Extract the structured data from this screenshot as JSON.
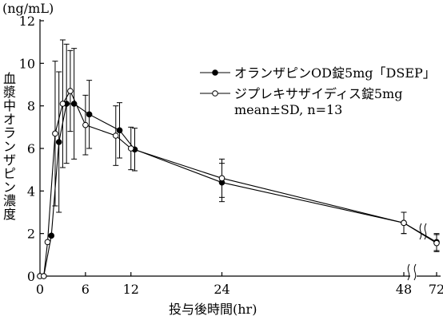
{
  "chart_data": {
    "type": "line",
    "ylabel_unit": "(ng/mL)",
    "ylabel": "血漿中オランザピン濃度",
    "xlabel": "投与後時間(hr)",
    "ylim": [
      0,
      12
    ],
    "y_ticks": [
      0,
      2,
      4,
      6,
      8,
      10,
      12
    ],
    "x_ticks": [
      {
        "value": 0,
        "label": "0"
      },
      {
        "value": 6,
        "label": "6"
      },
      {
        "value": 12,
        "label": "12"
      },
      {
        "value": 24,
        "label": "24"
      },
      {
        "value": 48,
        "label": "48"
      },
      {
        "value": 72,
        "label": "72"
      }
    ],
    "x_axis_break": "between 48 and 72",
    "series": [
      {
        "name": "オランザピンOD錠5mg「DSEP」",
        "marker": "filled-circle",
        "color": "#000000",
        "points": [
          {
            "x": 0,
            "y": 0,
            "sd": 0
          },
          {
            "x": 0.5,
            "y": 0,
            "sd": 0
          },
          {
            "x": 1.5,
            "y": 1.9,
            "sd": 0
          },
          {
            "x": 2.5,
            "y": 6.3,
            "sd": 3.3
          },
          {
            "x": 3.5,
            "y": 8.1,
            "sd": 2.8
          },
          {
            "x": 4.5,
            "y": 8.1,
            "sd": 2.6
          },
          {
            "x": 6.5,
            "y": 7.6,
            "sd": 1.6
          },
          {
            "x": 10.5,
            "y": 6.85,
            "sd": 1.3
          },
          {
            "x": 12.5,
            "y": 5.95,
            "sd": 1.0
          },
          {
            "x": 24,
            "y": 4.4,
            "sd": 0.9
          },
          {
            "x": 48,
            "y": 2.5,
            "sd": 0.5
          },
          {
            "x": 72,
            "y": 1.6,
            "sd": 0.4
          }
        ]
      },
      {
        "name": "ジプレキサザイディス錠5mg",
        "marker": "open-circle",
        "color": "#000000",
        "points": [
          {
            "x": 0,
            "y": 0,
            "sd": 0
          },
          {
            "x": 0.5,
            "y": 0,
            "sd": 0
          },
          {
            "x": 1.0,
            "y": 1.6,
            "sd": 0
          },
          {
            "x": 2.0,
            "y": 6.7,
            "sd": 3.4
          },
          {
            "x": 3.0,
            "y": 8.1,
            "sd": 3.0
          },
          {
            "x": 4.0,
            "y": 8.7,
            "sd": 1.9
          },
          {
            "x": 6.0,
            "y": 7.1,
            "sd": 1.4
          },
          {
            "x": 10.0,
            "y": 6.6,
            "sd": 1.4
          },
          {
            "x": 12.0,
            "y": 6.0,
            "sd": 1.0
          },
          {
            "x": 24,
            "y": 4.6,
            "sd": 0.9
          },
          {
            "x": 48,
            "y": 2.5,
            "sd": 0.5
          },
          {
            "x": 72,
            "y": 1.55,
            "sd": 0.4
          }
        ]
      }
    ],
    "legend_note": "mean±SD, n=13",
    "legend_position": "top-right"
  }
}
